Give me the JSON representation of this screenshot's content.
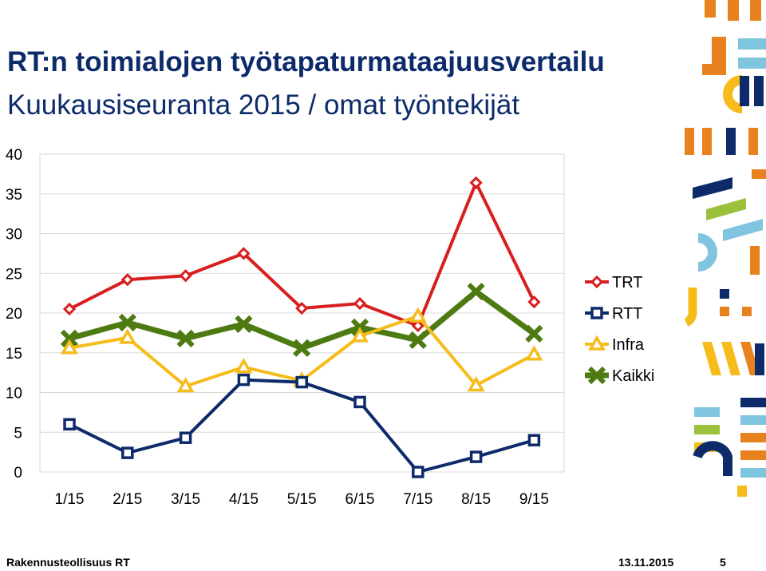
{
  "header": {
    "title": "RT:n toimialojen työtapaturmataajuusvertailu",
    "subtitle": "Kuukausiseuranta 2015 / omat työntekijät"
  },
  "footer": {
    "organization": "Rakennusteollisuus RT",
    "date": "13.11.2015",
    "page_number": "5"
  },
  "colors": {
    "title": "#0d2b6b",
    "TRT": "#d81e1e",
    "RTT": "#0d2b6b",
    "Infra": "#f6bc1c",
    "Kaikki": "#4e7a12",
    "grid": "#d9d9d9"
  },
  "chart_data": {
    "type": "line",
    "categories": [
      "1/15",
      "2/15",
      "3/15",
      "4/15",
      "5/15",
      "6/15",
      "7/15",
      "8/15",
      "9/15"
    ],
    "ylim": [
      0,
      40
    ],
    "yticks": [
      0,
      5,
      10,
      15,
      20,
      25,
      30,
      35,
      40
    ],
    "grid": true,
    "legend_position": "right",
    "series": [
      {
        "name": "TRT",
        "marker": "diamond",
        "values": [
          20.5,
          24.2,
          24.7,
          27.5,
          20.6,
          21.2,
          18.4,
          36.4,
          21.4
        ]
      },
      {
        "name": "RTT",
        "marker": "square",
        "values": [
          6.0,
          2.4,
          4.3,
          11.6,
          11.3,
          8.8,
          0.0,
          1.9,
          4.0
        ]
      },
      {
        "name": "Infra",
        "marker": "triangle",
        "values": [
          15.6,
          16.9,
          10.8,
          13.2,
          11.5,
          17.1,
          19.6,
          10.9,
          14.8
        ]
      },
      {
        "name": "Kaikki",
        "marker": "x",
        "values": [
          16.8,
          18.8,
          16.8,
          18.6,
          15.6,
          18.2,
          16.6,
          22.7,
          17.4
        ]
      }
    ]
  }
}
